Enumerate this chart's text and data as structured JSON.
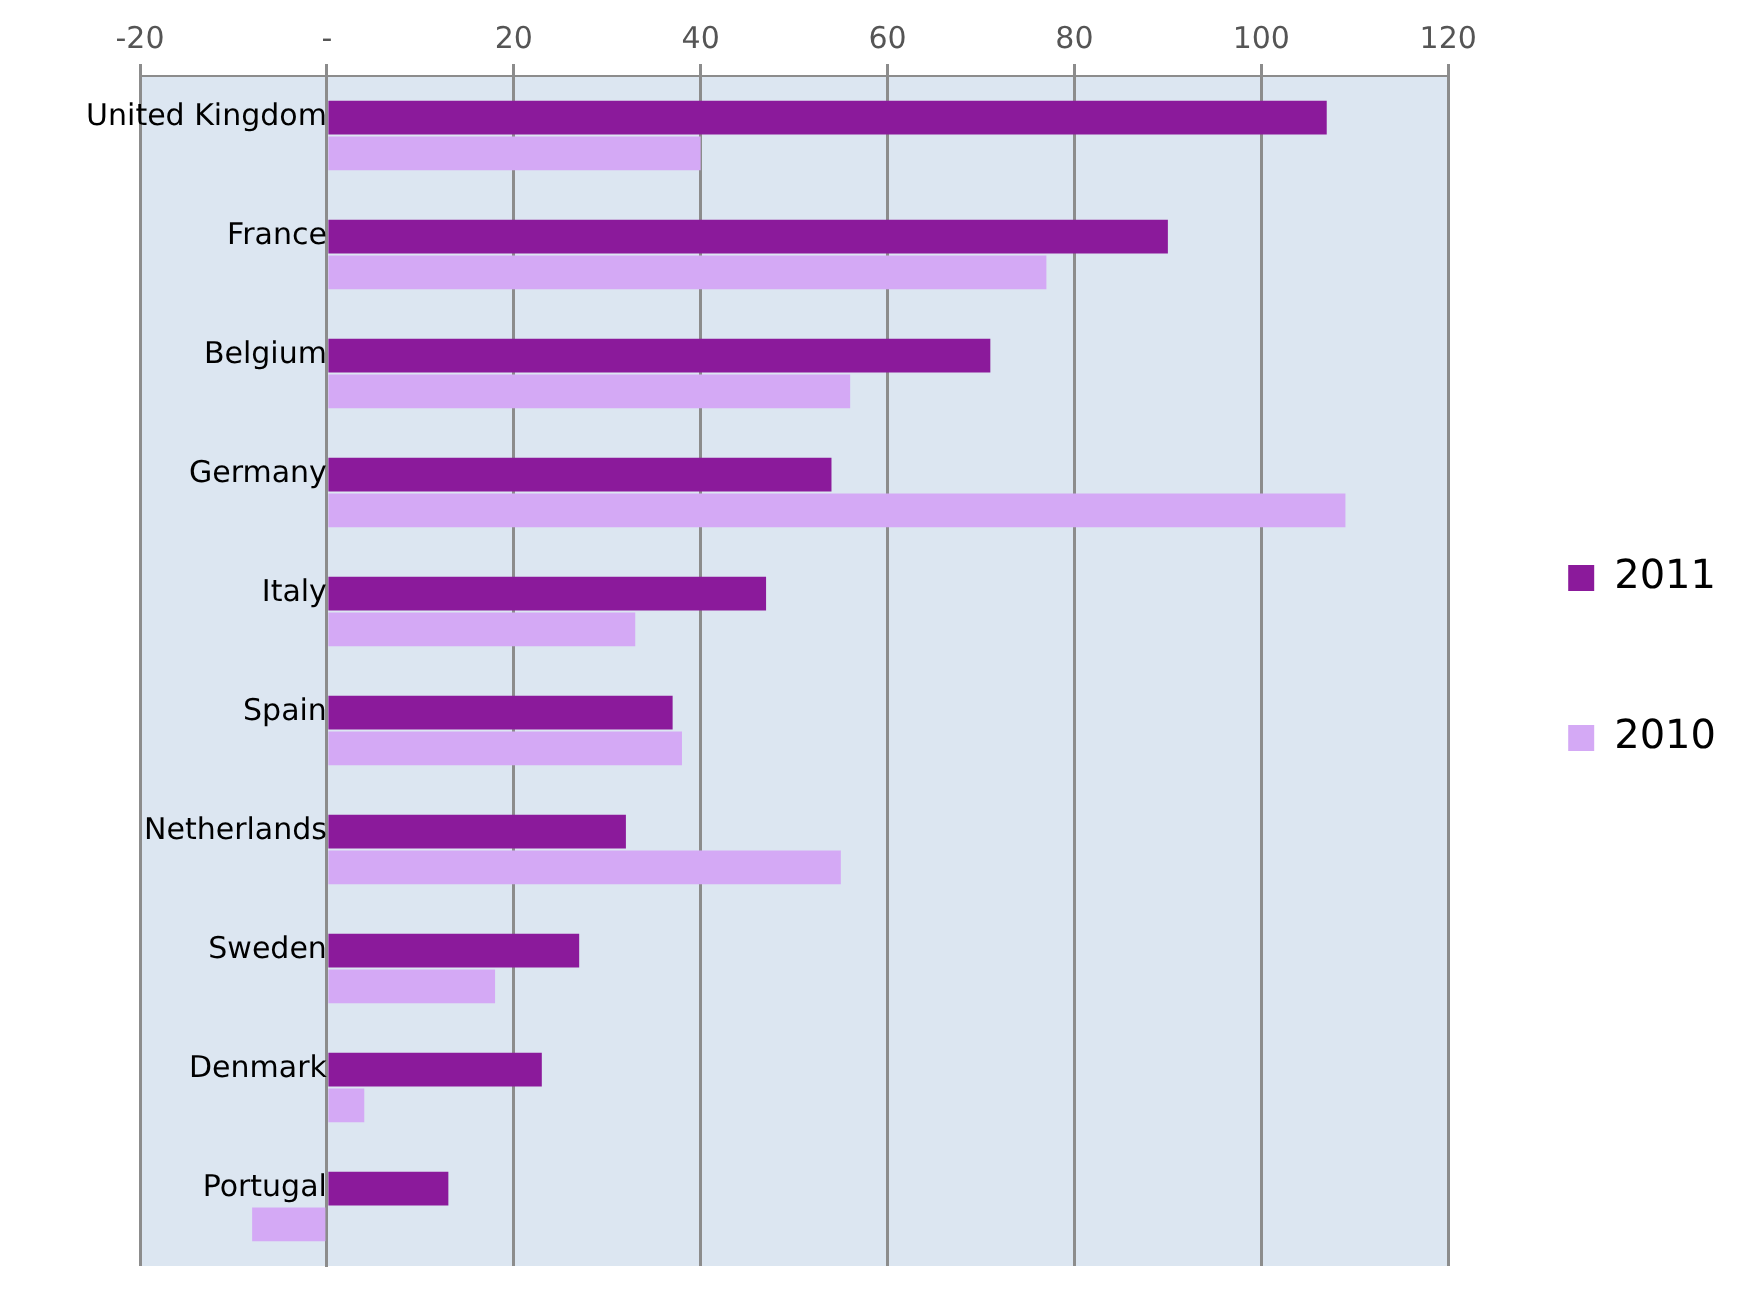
{
  "chart_data": {
    "type": "bar",
    "orientation": "horizontal",
    "categories": [
      "United Kingdom",
      "France",
      "Belgium",
      "Germany",
      "Italy",
      "Spain",
      "Netherlands",
      "Sweden",
      "Denmark",
      "Portugal"
    ],
    "series": [
      {
        "name": "2011",
        "color": "#8b1a9b",
        "values": [
          107,
          90,
          71,
          54,
          47,
          37,
          32,
          27,
          23,
          13
        ]
      },
      {
        "name": "2010",
        "color": "#d4a9f5",
        "values": [
          40,
          77,
          56,
          109,
          33,
          38,
          55,
          18,
          4,
          -8
        ]
      }
    ],
    "xlim": [
      -20,
      120
    ],
    "xticks": [
      -20,
      {
        "value": 0,
        "label": "-"
      },
      20,
      40,
      60,
      80,
      100,
      120
    ],
    "grid": "x",
    "legend": "right"
  }
}
